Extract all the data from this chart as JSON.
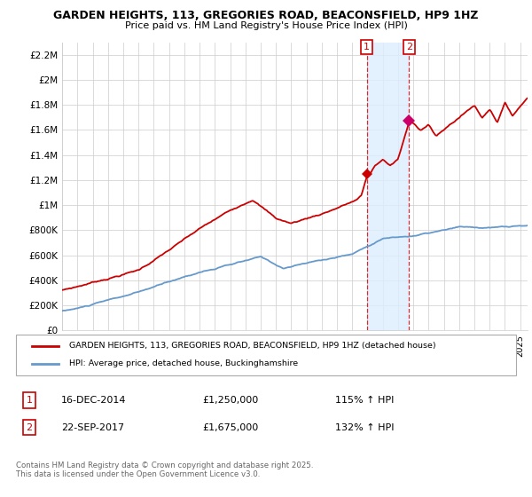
{
  "title1": "GARDEN HEIGHTS, 113, GREGORIES ROAD, BEACONSFIELD, HP9 1HZ",
  "title2": "Price paid vs. HM Land Registry's House Price Index (HPI)",
  "ylim": [
    0,
    2300000
  ],
  "yticks": [
    0,
    200000,
    400000,
    600000,
    800000,
    1000000,
    1200000,
    1400000,
    1600000,
    1800000,
    2000000,
    2200000
  ],
  "ytick_labels": [
    "£0",
    "£200K",
    "£400K",
    "£600K",
    "£800K",
    "£1M",
    "£1.2M",
    "£1.4M",
    "£1.6M",
    "£1.8M",
    "£2M",
    "£2.2M"
  ],
  "red_line_color": "#cc0000",
  "blue_line_color": "#6699cc",
  "shade_color": "#ddeeff",
  "marker1_x": 2014.96,
  "marker1_y": 1250000,
  "marker2_x": 2017.73,
  "marker2_y": 1675000,
  "legend1": "GARDEN HEIGHTS, 113, GREGORIES ROAD, BEACONSFIELD, HP9 1HZ (detached house)",
  "legend2": "HPI: Average price, detached house, Buckinghamshire",
  "ann1_label": "1",
  "ann1_date": "16-DEC-2014",
  "ann1_price": "£1,250,000",
  "ann1_hpi": "115% ↑ HPI",
  "ann2_label": "2",
  "ann2_date": "22-SEP-2017",
  "ann2_price": "£1,675,000",
  "ann2_hpi": "132% ↑ HPI",
  "footer": "Contains HM Land Registry data © Crown copyright and database right 2025.\nThis data is licensed under the Open Government Licence v3.0.",
  "xlim_start": 1995.0,
  "xlim_end": 2025.5
}
